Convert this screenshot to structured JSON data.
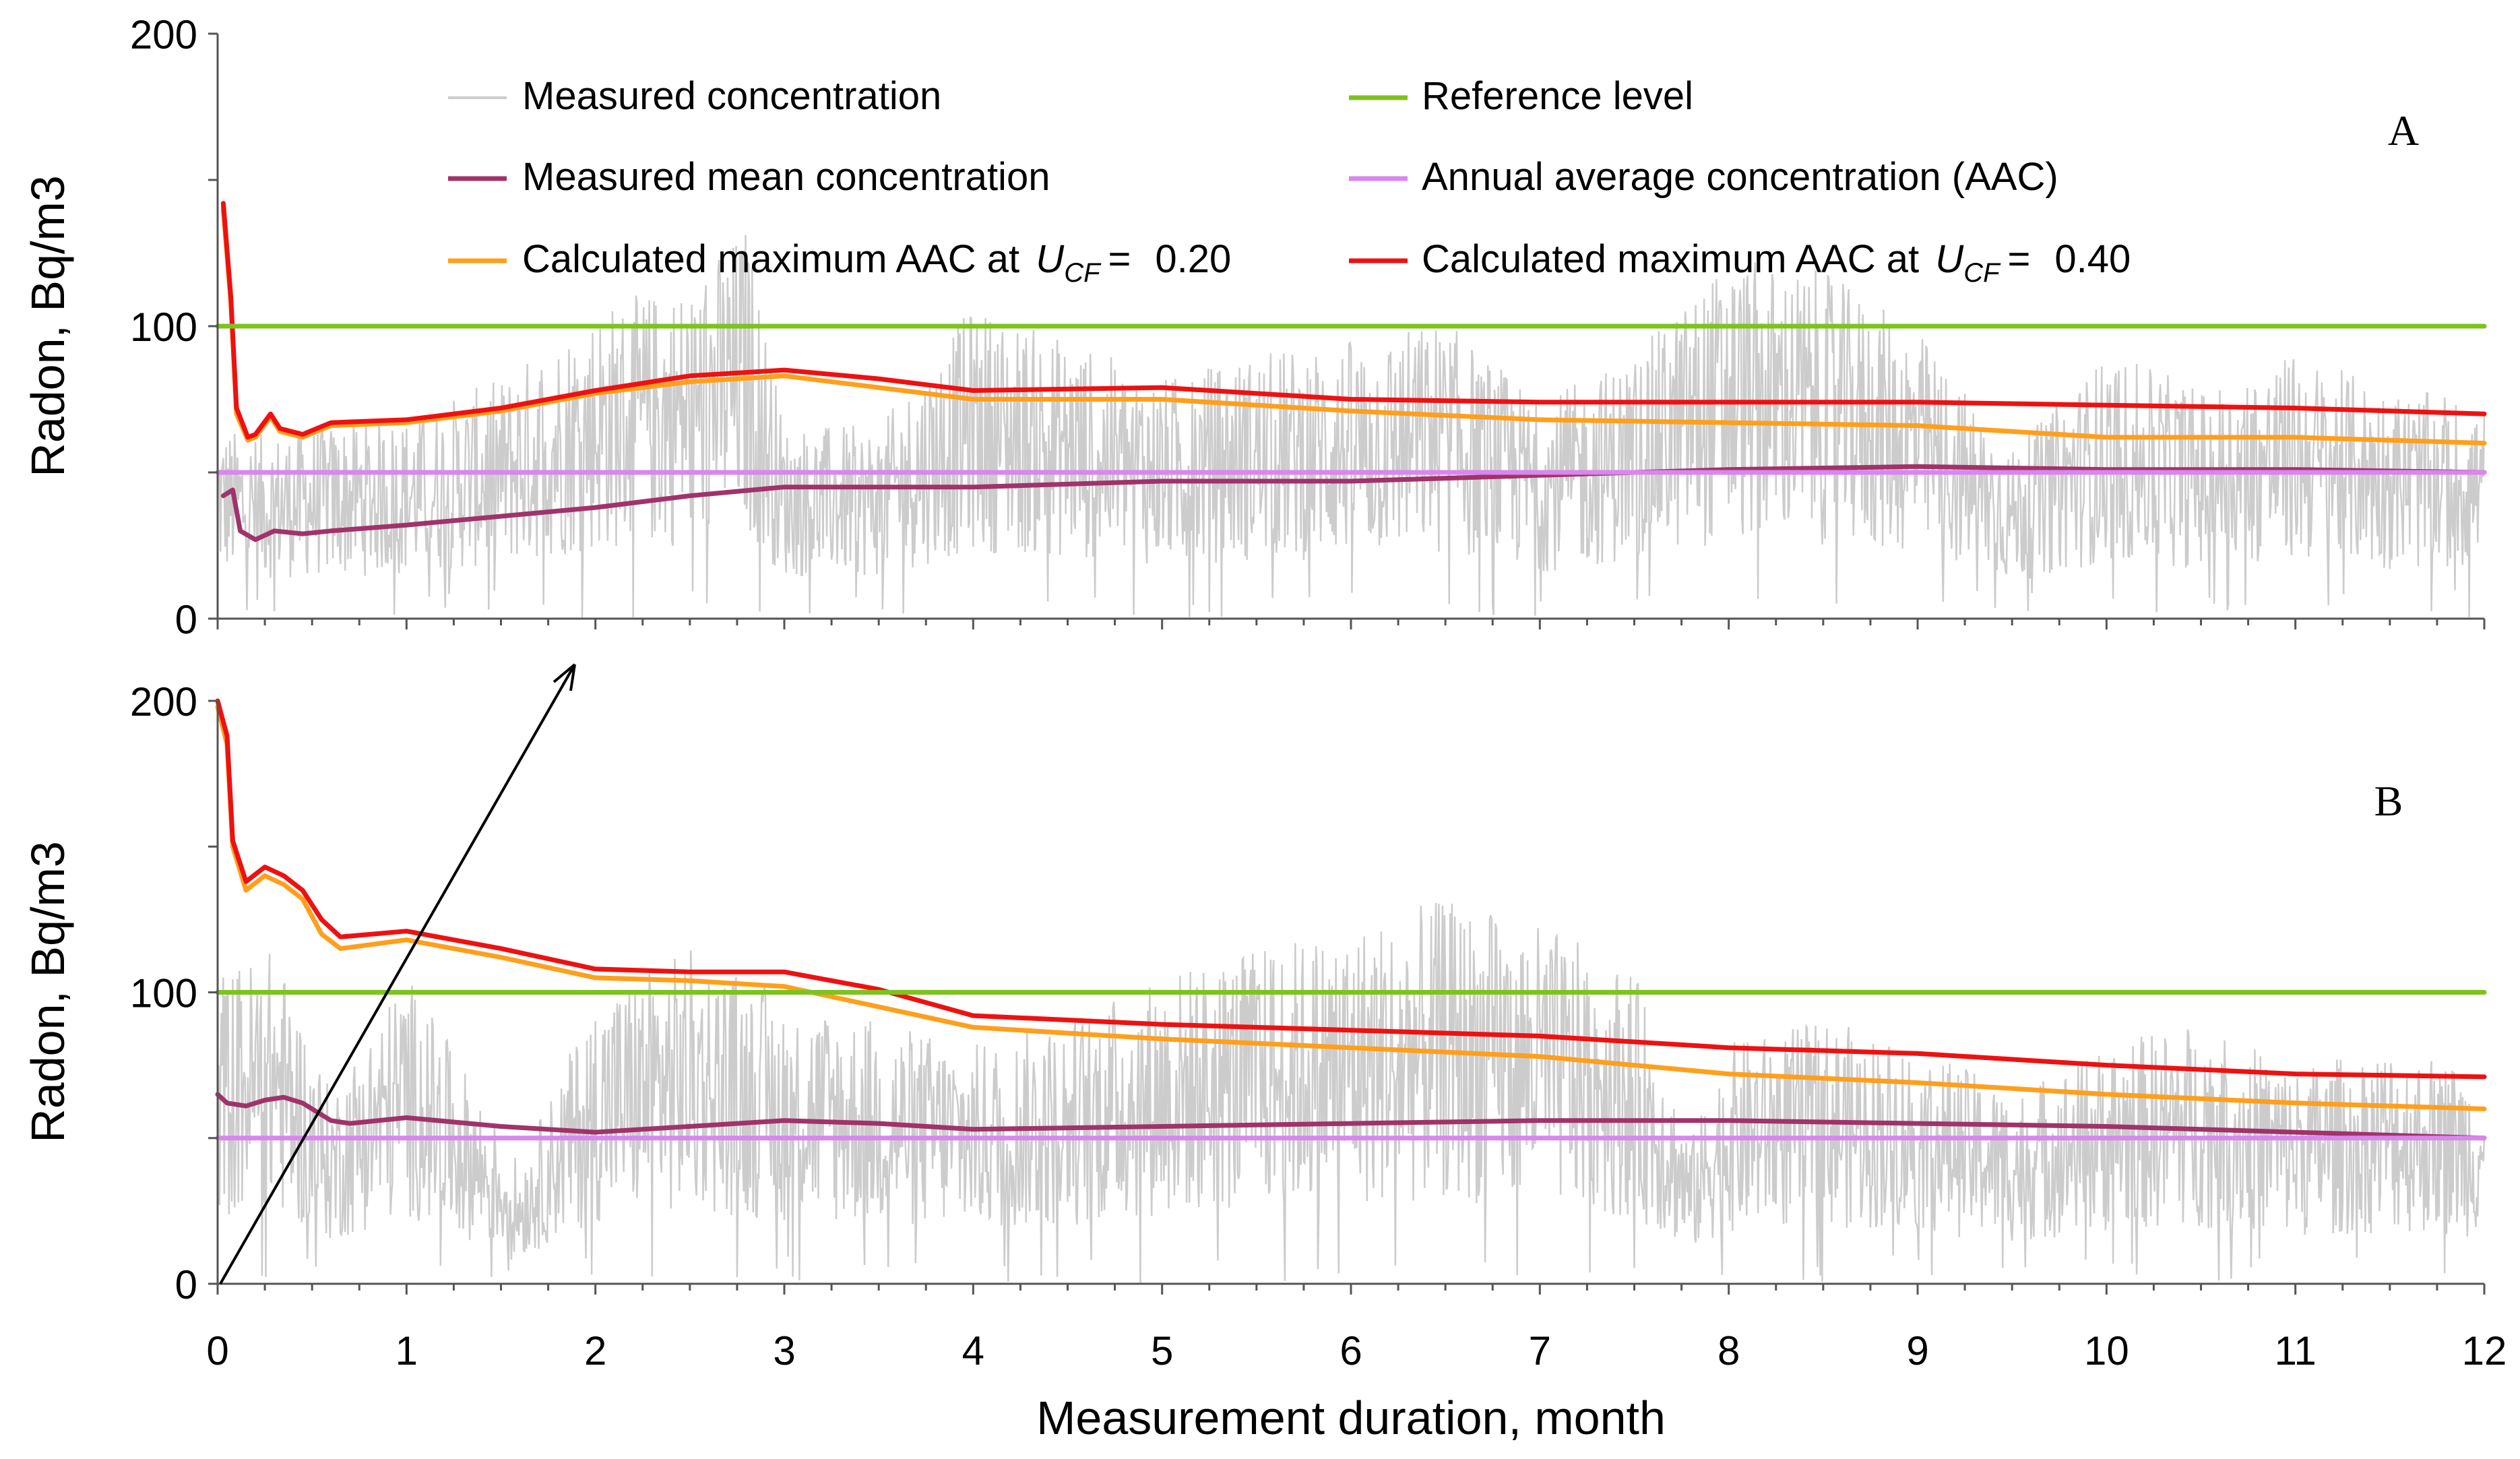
{
  "chart_data": [
    {
      "panel": "A",
      "type": "line",
      "ylabel": "Radon, Bq/m3",
      "ylim": [
        0,
        200
      ],
      "yticks": [
        "0",
        "100",
        "200"
      ],
      "xlim": [
        0,
        12
      ],
      "series": [
        {
          "name": "Measured concentration",
          "color": "#cccccc",
          "style": "noisy",
          "envelope": [
            [
              0,
              40
            ],
            [
              0.2,
              38
            ],
            [
              0.5,
              40
            ],
            [
              1,
              42
            ],
            [
              1.5,
              50
            ],
            [
              2,
              65
            ],
            [
              2.5,
              70
            ],
            [
              2.8,
              82
            ],
            [
              3,
              40
            ],
            [
              3.5,
              40
            ],
            [
              4,
              65
            ],
            [
              4.5,
              58
            ],
            [
              5,
              50
            ],
            [
              5.5,
              55
            ],
            [
              6,
              58
            ],
            [
              6.5,
              62
            ],
            [
              7,
              45
            ],
            [
              7.5,
              55
            ],
            [
              8,
              75
            ],
            [
              8.5,
              72
            ],
            [
              9,
              60
            ],
            [
              9.5,
              35
            ],
            [
              10,
              55
            ],
            [
              10.5,
              48
            ],
            [
              11,
              55
            ],
            [
              11.5,
              48
            ],
            [
              12,
              45
            ]
          ]
        },
        {
          "name": "Measured mean concentration",
          "color": "#a0336a",
          "points": [
            [
              0.03,
              42
            ],
            [
              0.08,
              44
            ],
            [
              0.12,
              30
            ],
            [
              0.2,
              27
            ],
            [
              0.3,
              30
            ],
            [
              0.45,
              29
            ],
            [
              0.6,
              30
            ],
            [
              0.8,
              31
            ],
            [
              1,
              32
            ],
            [
              1.5,
              35
            ],
            [
              2,
              38
            ],
            [
              2.5,
              42
            ],
            [
              3,
              45
            ],
            [
              4,
              45
            ],
            [
              5,
              47
            ],
            [
              6,
              47
            ],
            [
              7,
              49
            ],
            [
              8,
              51
            ],
            [
              9,
              52
            ],
            [
              10,
              51
            ],
            [
              11,
              51
            ],
            [
              12,
              50
            ]
          ]
        },
        {
          "name": "Calculated maximum AAC at U_CF = 0.20",
          "color": "#ff9f1c",
          "points": [
            [
              0.03,
              140
            ],
            [
              0.07,
              108
            ],
            [
              0.1,
              70
            ],
            [
              0.16,
              61
            ],
            [
              0.2,
              62
            ],
            [
              0.28,
              69
            ],
            [
              0.33,
              64
            ],
            [
              0.45,
              62
            ],
            [
              0.6,
              66
            ],
            [
              1,
              67
            ],
            [
              1.5,
              71
            ],
            [
              2,
              77
            ],
            [
              2.5,
              81
            ],
            [
              3,
              83
            ],
            [
              3.5,
              79
            ],
            [
              4,
              75
            ],
            [
              5,
              75
            ],
            [
              6,
              71
            ],
            [
              7,
              68
            ],
            [
              8,
              67
            ],
            [
              9,
              66
            ],
            [
              10,
              62
            ],
            [
              11,
              62
            ],
            [
              12,
              60
            ]
          ]
        },
        {
          "name": "Calculated maximum AAC at U_CF = 0.40",
          "color": "#ee1111",
          "points": [
            [
              0.03,
              142
            ],
            [
              0.07,
              110
            ],
            [
              0.1,
              72
            ],
            [
              0.16,
              62
            ],
            [
              0.2,
              63
            ],
            [
              0.28,
              70
            ],
            [
              0.33,
              65
            ],
            [
              0.45,
              63
            ],
            [
              0.6,
              67
            ],
            [
              1,
              68
            ],
            [
              1.5,
              72
            ],
            [
              2,
              78
            ],
            [
              2.5,
              83
            ],
            [
              3,
              85
            ],
            [
              3.5,
              82
            ],
            [
              4,
              78
            ],
            [
              5,
              79
            ],
            [
              6,
              75
            ],
            [
              7,
              74
            ],
            [
              8,
              74
            ],
            [
              9,
              74
            ],
            [
              10,
              73
            ],
            [
              11,
              72
            ],
            [
              12,
              70
            ]
          ]
        },
        {
          "name": "Reference level",
          "color": "#7dc31e",
          "points": [
            [
              0,
              100
            ],
            [
              12,
              100
            ]
          ]
        },
        {
          "name": "Annual average concentration (AAC)",
          "color": "#d986ee",
          "points": [
            [
              0,
              50
            ],
            [
              12,
              50
            ]
          ]
        }
      ]
    },
    {
      "panel": "B",
      "type": "line",
      "ylabel": "Radon, Bq/m3",
      "ylim": [
        0,
        200
      ],
      "yticks": [
        "0",
        "100",
        "200"
      ],
      "xlim": [
        0,
        12
      ],
      "xlabel": "Measurement duration, month",
      "xticks": [
        "0",
        "1",
        "2",
        "3",
        "4",
        "5",
        "6",
        "7",
        "8",
        "9",
        "10",
        "11",
        "12"
      ],
      "series": [
        {
          "name": "Measured concentration",
          "color": "#cccccc",
          "style": "noisy",
          "envelope": [
            [
              0,
              65
            ],
            [
              0.3,
              70
            ],
            [
              0.6,
              40
            ],
            [
              1,
              65
            ],
            [
              1.3,
              45
            ],
            [
              1.6,
              25
            ],
            [
              2,
              60
            ],
            [
              2.5,
              70
            ],
            [
              3,
              60
            ],
            [
              3.5,
              55
            ],
            [
              4,
              50
            ],
            [
              4.5,
              55
            ],
            [
              5,
              65
            ],
            [
              5.5,
              70
            ],
            [
              6,
              75
            ],
            [
              6.5,
              80
            ],
            [
              7,
              75
            ],
            [
              7.5,
              65
            ],
            [
              7.8,
              30
            ],
            [
              8,
              50
            ],
            [
              8.5,
              55
            ],
            [
              9,
              50
            ],
            [
              9.5,
              40
            ],
            [
              10,
              50
            ],
            [
              10.5,
              55
            ],
            [
              11,
              45
            ],
            [
              11.5,
              50
            ],
            [
              12,
              45
            ]
          ]
        },
        {
          "name": "Measured mean concentration",
          "color": "#a0336a",
          "points": [
            [
              0,
              65
            ],
            [
              0.05,
              62
            ],
            [
              0.15,
              61
            ],
            [
              0.25,
              63
            ],
            [
              0.35,
              64
            ],
            [
              0.45,
              62
            ],
            [
              0.6,
              56
            ],
            [
              0.7,
              55
            ],
            [
              1,
              57
            ],
            [
              1.5,
              54
            ],
            [
              2,
              52
            ],
            [
              2.5,
              54
            ],
            [
              3,
              56
            ],
            [
              3.5,
              55
            ],
            [
              4,
              53
            ],
            [
              5,
              54
            ],
            [
              6,
              55
            ],
            [
              7,
              56
            ],
            [
              8,
              56
            ],
            [
              9,
              55
            ],
            [
              10,
              54
            ],
            [
              11,
              52
            ],
            [
              12,
              50
            ]
          ]
        },
        {
          "name": "Calculated maximum AAC at U_CF = 0.20",
          "color": "#ff9f1c",
          "points": [
            [
              0,
              198
            ],
            [
              0.05,
              185
            ],
            [
              0.08,
              150
            ],
            [
              0.15,
              135
            ],
            [
              0.25,
              140
            ],
            [
              0.35,
              137
            ],
            [
              0.45,
              132
            ],
            [
              0.55,
              120
            ],
            [
              0.65,
              115
            ],
            [
              1,
              118
            ],
            [
              1.5,
              112
            ],
            [
              2,
              105
            ],
            [
              2.5,
              104
            ],
            [
              3,
              102
            ],
            [
              3.5,
              95
            ],
            [
              4,
              88
            ],
            [
              5,
              84
            ],
            [
              6,
              81
            ],
            [
              7,
              78
            ],
            [
              8,
              72
            ],
            [
              9,
              69
            ],
            [
              10,
              65
            ],
            [
              11,
              62
            ],
            [
              12,
              60
            ]
          ]
        },
        {
          "name": "Calculated maximum AAC at U_CF = 0.40",
          "color": "#ee1111",
          "points": [
            [
              0,
              200
            ],
            [
              0.05,
              188
            ],
            [
              0.08,
              152
            ],
            [
              0.15,
              138
            ],
            [
              0.25,
              143
            ],
            [
              0.35,
              140
            ],
            [
              0.45,
              135
            ],
            [
              0.55,
              125
            ],
            [
              0.65,
              119
            ],
            [
              1,
              121
            ],
            [
              1.5,
              115
            ],
            [
              2,
              108
            ],
            [
              2.5,
              107
            ],
            [
              3,
              107
            ],
            [
              3.5,
              101
            ],
            [
              4,
              92
            ],
            [
              5,
              89
            ],
            [
              6,
              87
            ],
            [
              7,
              85
            ],
            [
              8,
              81
            ],
            [
              9,
              79
            ],
            [
              10,
              75
            ],
            [
              11,
              72
            ],
            [
              12,
              71
            ]
          ]
        },
        {
          "name": "Reference level",
          "color": "#7dc31e",
          "points": [
            [
              0,
              100
            ],
            [
              12,
              100
            ]
          ]
        },
        {
          "name": "Annual average concentration (AAC)",
          "color": "#d986ee",
          "points": [
            [
              0,
              50
            ],
            [
              12,
              50
            ]
          ]
        }
      ]
    }
  ],
  "panels": {
    "a": {
      "label": "A"
    },
    "b": {
      "label": "B"
    }
  },
  "axis": {
    "ylabel": "Radon, Bq/m3",
    "xlabel": "Measurement duration, month"
  },
  "legend": {
    "measured": "Measured concentration",
    "mean": "Measured mean concentration",
    "ucf020_prefix": "Calculated maximum AAC at ",
    "ucf020_value": "0.20",
    "reference": "Reference level",
    "aac": "Annual average concentration (AAC)",
    "ucf040_prefix": "Calculated maximum AAC at ",
    "ucf040_value": "0.40",
    "u_symbol": "U",
    "cf_subscript": "CF",
    "equals": "="
  },
  "annotation": {
    "arrow": {
      "from": [
        0,
        0
      ],
      "to_panel_a": [
        1.9,
        0
      ]
    }
  }
}
